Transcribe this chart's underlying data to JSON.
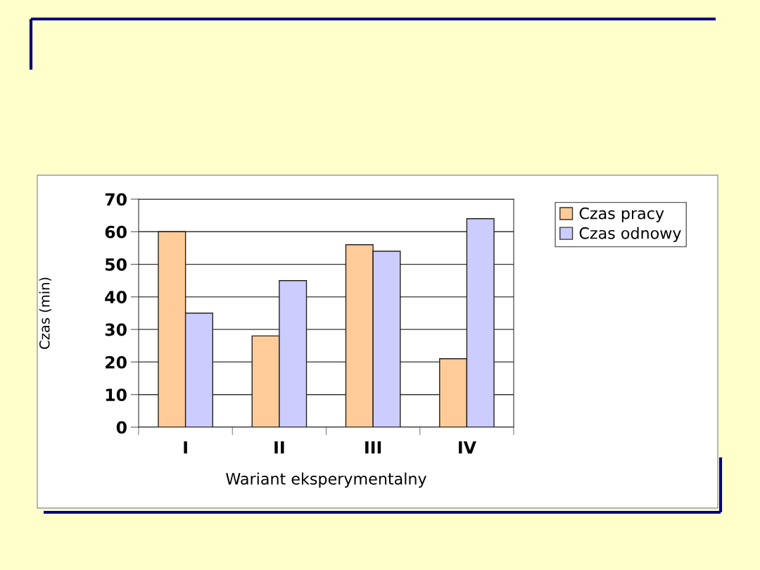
{
  "chart_data": {
    "type": "bar",
    "categories": [
      "I",
      "II",
      "III",
      "IV"
    ],
    "series": [
      {
        "name": "Czas pracy",
        "color": "#ffcc99",
        "values": [
          60,
          28,
          56,
          21
        ]
      },
      {
        "name": "Czas odnowy",
        "color": "#ccccff",
        "values": [
          35,
          45,
          54,
          64
        ]
      }
    ],
    "xlabel": "Wariant eksperymentalny",
    "ylabel": "Czas (min)",
    "ylim": [
      0,
      70
    ],
    "yticks": [
      0,
      10,
      20,
      30,
      40,
      50,
      60,
      70
    ],
    "grid": "y",
    "legend": "top right"
  }
}
